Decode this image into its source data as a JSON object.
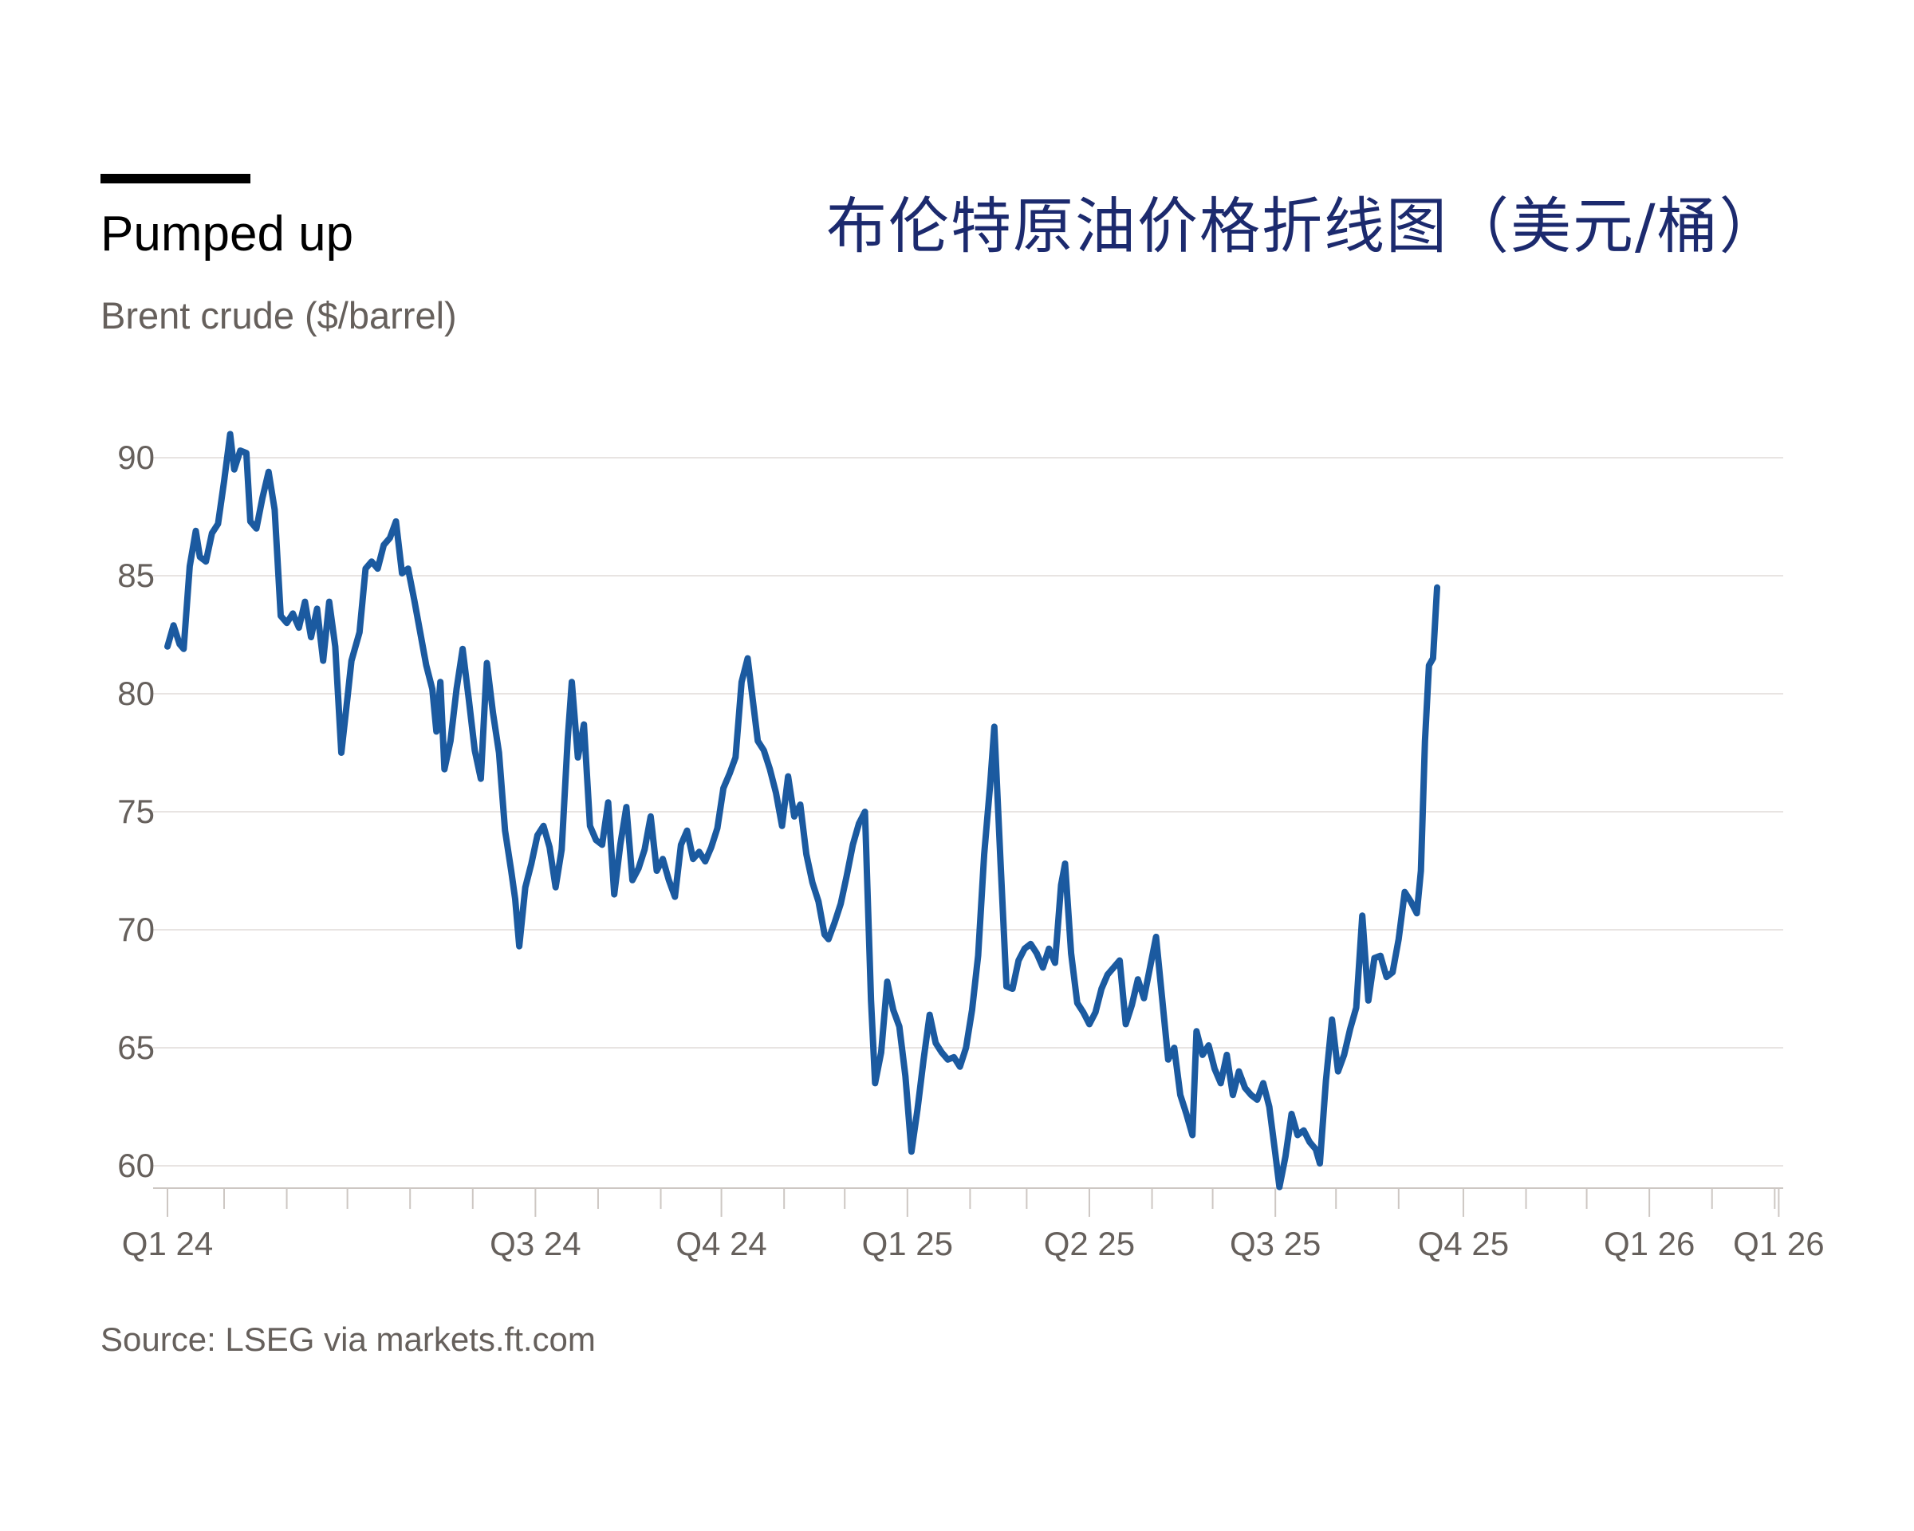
{
  "header": {
    "title": "Pumped up",
    "subtitle": "Brent crude ($/barrel)",
    "zh_title": "布伦特原油价格折线图（美元/桶）"
  },
  "footer": {
    "source": "Source: LSEG via markets.ft.com"
  },
  "colors": {
    "line": "#1b5aa0",
    "grid": "#e8e4e2",
    "axis": "#cdc7c3",
    "text": "#66605c"
  },
  "chart_data": {
    "type": "line",
    "title": "Pumped up",
    "subtitle": "Brent crude ($/barrel)",
    "xlabel": "",
    "ylabel": "",
    "ylim": [
      58.5,
      91.5
    ],
    "yticks": [
      60,
      65,
      70,
      75,
      80,
      85,
      90
    ],
    "grid": true,
    "legend": "none",
    "x_tick_labels": [
      "Q1 24",
      "Q3 24",
      "Q4 24",
      "Q1 25",
      "Q2 25",
      "Q3 25",
      "Q4 25",
      "Q1 26",
      "Q1 26"
    ],
    "x_tick_days": [
      0,
      182,
      274,
      366,
      456,
      548,
      641,
      733,
      797
    ],
    "x_minor_days": [
      28,
      59,
      89,
      120,
      151,
      213,
      244,
      305,
      335,
      397,
      425,
      487,
      517,
      578,
      609,
      672,
      702,
      764,
      795
    ],
    "x_range_days": [
      0,
      800
    ],
    "series": [
      {
        "name": "Brent crude",
        "points": [
          [
            0,
            82.0
          ],
          [
            3,
            82.9
          ],
          [
            6,
            82.1
          ],
          [
            8,
            81.9
          ],
          [
            11,
            85.4
          ],
          [
            14,
            86.9
          ],
          [
            16,
            85.8
          ],
          [
            19,
            85.6
          ],
          [
            22,
            86.8
          ],
          [
            25,
            87.2
          ],
          [
            28,
            89.0
          ],
          [
            31,
            91.0
          ],
          [
            33,
            89.5
          ],
          [
            36,
            90.3
          ],
          [
            39,
            90.2
          ],
          [
            41,
            87.3
          ],
          [
            44,
            87.0
          ],
          [
            47,
            88.3
          ],
          [
            50,
            89.4
          ],
          [
            53,
            87.8
          ],
          [
            56,
            83.3
          ],
          [
            59,
            83.0
          ],
          [
            62,
            83.4
          ],
          [
            65,
            82.8
          ],
          [
            68,
            83.9
          ],
          [
            71,
            82.4
          ],
          [
            74,
            83.6
          ],
          [
            77,
            81.4
          ],
          [
            80,
            83.9
          ],
          [
            83,
            82.0
          ],
          [
            86,
            77.5
          ],
          [
            89,
            79.8
          ],
          [
            91,
            81.4
          ],
          [
            95,
            82.6
          ],
          [
            98,
            85.3
          ],
          [
            101,
            85.6
          ],
          [
            104,
            85.3
          ],
          [
            107,
            86.3
          ],
          [
            110,
            86.6
          ],
          [
            113,
            87.3
          ],
          [
            116,
            85.1
          ],
          [
            119,
            85.3
          ],
          [
            122,
            84.0
          ],
          [
            125,
            82.6
          ],
          [
            128,
            81.2
          ],
          [
            131,
            80.2
          ],
          [
            133,
            78.4
          ],
          [
            135,
            80.5
          ],
          [
            137,
            76.8
          ],
          [
            140,
            78.0
          ],
          [
            143,
            80.2
          ],
          [
            146,
            81.9
          ],
          [
            149,
            79.8
          ],
          [
            152,
            77.6
          ],
          [
            155,
            76.4
          ],
          [
            158,
            81.3
          ],
          [
            161,
            79.2
          ],
          [
            164,
            77.5
          ],
          [
            167,
            74.2
          ],
          [
            170,
            72.5
          ],
          [
            172,
            71.3
          ],
          [
            174,
            69.3
          ],
          [
            177,
            71.8
          ],
          [
            180,
            72.8
          ],
          [
            183,
            74.0
          ],
          [
            186,
            74.4
          ],
          [
            189,
            73.5
          ],
          [
            192,
            71.8
          ],
          [
            195,
            73.4
          ],
          [
            198,
            78.1
          ],
          [
            200,
            80.5
          ],
          [
            203,
            77.3
          ],
          [
            206,
            78.7
          ],
          [
            209,
            74.4
          ],
          [
            212,
            73.8
          ],
          [
            215,
            73.6
          ],
          [
            218,
            75.4
          ],
          [
            221,
            71.5
          ],
          [
            224,
            73.6
          ],
          [
            227,
            75.2
          ],
          [
            230,
            72.1
          ],
          [
            233,
            72.6
          ],
          [
            236,
            73.4
          ],
          [
            239,
            74.8
          ],
          [
            242,
            72.5
          ],
          [
            245,
            73.0
          ],
          [
            248,
            72.1
          ],
          [
            251,
            71.4
          ],
          [
            254,
            73.6
          ],
          [
            257,
            74.2
          ],
          [
            260,
            73.0
          ],
          [
            263,
            73.3
          ],
          [
            266,
            72.9
          ],
          [
            269,
            73.5
          ],
          [
            272,
            74.3
          ],
          [
            275,
            76.0
          ],
          [
            278,
            76.6
          ],
          [
            281,
            77.3
          ],
          [
            284,
            80.5
          ],
          [
            287,
            81.5
          ],
          [
            289,
            80.1
          ],
          [
            292,
            78.0
          ],
          [
            295,
            77.6
          ],
          [
            298,
            76.8
          ],
          [
            301,
            75.8
          ],
          [
            304,
            74.4
          ],
          [
            307,
            76.5
          ],
          [
            310,
            74.8
          ],
          [
            313,
            75.3
          ],
          [
            316,
            73.2
          ],
          [
            319,
            72.0
          ],
          [
            322,
            71.2
          ],
          [
            325,
            69.8
          ],
          [
            327,
            69.6
          ],
          [
            330,
            70.3
          ],
          [
            333,
            71.1
          ],
          [
            336,
            72.3
          ],
          [
            339,
            73.6
          ],
          [
            342,
            74.5
          ],
          [
            345,
            75.0
          ],
          [
            348,
            67.0
          ],
          [
            350,
            63.5
          ],
          [
            353,
            64.8
          ],
          [
            356,
            67.8
          ],
          [
            359,
            66.6
          ],
          [
            362,
            65.9
          ],
          [
            365,
            63.8
          ],
          [
            368,
            60.6
          ],
          [
            371,
            62.4
          ],
          [
            374,
            64.5
          ],
          [
            377,
            66.4
          ],
          [
            380,
            65.2
          ],
          [
            383,
            64.8
          ],
          [
            386,
            64.5
          ],
          [
            389,
            64.6
          ],
          [
            392,
            64.2
          ],
          [
            395,
            65.0
          ],
          [
            398,
            66.6
          ],
          [
            401,
            68.9
          ],
          [
            404,
            73.2
          ],
          [
            407,
            76.2
          ],
          [
            409,
            78.6
          ],
          [
            412,
            73.0
          ],
          [
            415,
            67.6
          ],
          [
            418,
            67.5
          ],
          [
            421,
            68.7
          ],
          [
            424,
            69.2
          ],
          [
            427,
            69.4
          ],
          [
            430,
            69.0
          ],
          [
            433,
            68.4
          ],
          [
            436,
            69.2
          ],
          [
            439,
            68.6
          ],
          [
            442,
            71.9
          ],
          [
            444,
            72.8
          ],
          [
            447,
            69.0
          ],
          [
            450,
            66.9
          ],
          [
            453,
            66.5
          ],
          [
            456,
            66.0
          ],
          [
            459,
            66.5
          ],
          [
            462,
            67.5
          ],
          [
            465,
            68.1
          ],
          [
            468,
            68.4
          ],
          [
            471,
            68.7
          ],
          [
            474,
            66.0
          ],
          [
            477,
            66.8
          ],
          [
            480,
            67.9
          ],
          [
            483,
            67.1
          ],
          [
            486,
            68.4
          ],
          [
            489,
            69.7
          ],
          [
            492,
            67.1
          ],
          [
            495,
            64.5
          ],
          [
            498,
            65.0
          ],
          [
            501,
            63.0
          ],
          [
            504,
            62.2
          ],
          [
            507,
            61.3
          ],
          [
            509,
            65.7
          ],
          [
            512,
            64.7
          ],
          [
            515,
            65.1
          ],
          [
            518,
            64.1
          ],
          [
            521,
            63.5
          ],
          [
            524,
            64.7
          ],
          [
            527,
            63.0
          ],
          [
            530,
            64.0
          ],
          [
            533,
            63.3
          ],
          [
            536,
            63.0
          ],
          [
            539,
            62.8
          ],
          [
            542,
            63.5
          ],
          [
            545,
            62.5
          ],
          [
            548,
            60.5
          ],
          [
            550,
            59.1
          ],
          [
            553,
            60.4
          ],
          [
            556,
            62.2
          ],
          [
            559,
            61.3
          ],
          [
            562,
            61.5
          ],
          [
            565,
            61.0
          ],
          [
            568,
            60.7
          ],
          [
            570,
            60.1
          ],
          [
            573,
            63.6
          ],
          [
            576,
            66.2
          ],
          [
            579,
            64.0
          ],
          [
            582,
            64.7
          ],
          [
            585,
            65.8
          ],
          [
            588,
            66.7
          ],
          [
            591,
            70.6
          ],
          [
            594,
            67.0
          ],
          [
            597,
            68.8
          ],
          [
            600,
            68.9
          ],
          [
            603,
            68.0
          ],
          [
            606,
            68.2
          ],
          [
            609,
            69.6
          ],
          [
            612,
            71.6
          ],
          [
            615,
            71.2
          ],
          [
            618,
            70.7
          ],
          [
            620,
            72.5
          ],
          [
            622,
            78.0
          ],
          [
            624,
            81.2
          ],
          [
            626,
            81.5
          ],
          [
            628,
            84.5
          ]
        ]
      }
    ]
  }
}
